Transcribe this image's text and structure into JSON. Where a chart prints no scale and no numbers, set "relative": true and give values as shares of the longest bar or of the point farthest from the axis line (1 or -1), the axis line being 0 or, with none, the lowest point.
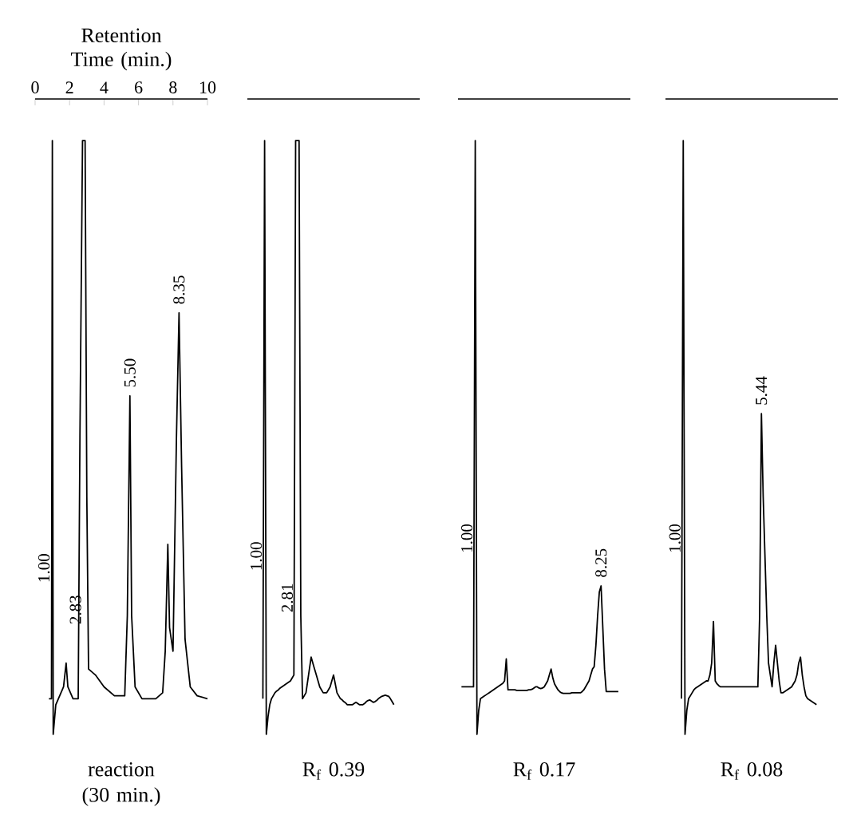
{
  "chart_data": [
    {
      "type": "line",
      "relative": true,
      "xlabel": "Retention Time (min.)",
      "xlim": [
        0,
        10
      ],
      "xticks": [
        0,
        2,
        4,
        6,
        8,
        10
      ],
      "tick_labels": "x",
      "series": [
        {
          "color": "#000000",
          "x": [
            0.8,
            0.95,
            1.0,
            1.05,
            1.2,
            1.5,
            1.65,
            1.8,
            1.9,
            2.2,
            2.4,
            2.5,
            2.6,
            2.75,
            2.9,
            3.0,
            3.1,
            3.5,
            4.0,
            4.6,
            5.2,
            5.35,
            5.5,
            5.6,
            5.8,
            6.2,
            7.0,
            7.4,
            7.55,
            7.7,
            7.8,
            8.0,
            8.2,
            8.35,
            8.5,
            8.7,
            9.0,
            9.4,
            10.0
          ],
          "values": [
            0.06,
            0.06,
            1.0,
            0.0,
            0.05,
            0.07,
            0.08,
            0.12,
            0.08,
            0.06,
            0.06,
            0.06,
            0.5,
            1.0,
            1.0,
            0.4,
            0.11,
            0.1,
            0.08,
            0.065,
            0.065,
            0.2,
            0.57,
            0.2,
            0.08,
            0.06,
            0.06,
            0.07,
            0.14,
            0.32,
            0.18,
            0.14,
            0.5,
            0.71,
            0.45,
            0.16,
            0.08,
            0.065,
            0.06
          ]
        }
      ],
      "annotations": [
        {
          "text": "1.00",
          "x": 1.0,
          "y": 0.28
        },
        {
          "text": "2.83",
          "x": 2.83,
          "y": 0.21
        },
        {
          "text": "5.50",
          "x": 5.5,
          "y": 0.57
        },
        {
          "text": "8.35",
          "x": 8.35,
          "y": 0.71
        },
        "reaction (30 min.)"
      ]
    },
    {
      "type": "line",
      "relative": true,
      "tick_labels": false,
      "categories": [
        null,
        null,
        null,
        null,
        null,
        null,
        null,
        null,
        null,
        null,
        null,
        null,
        null,
        null,
        null,
        null,
        null,
        null,
        null,
        null,
        null,
        null,
        null,
        null,
        null,
        null,
        null,
        null,
        null,
        null,
        null,
        null,
        null,
        null,
        null,
        null,
        null,
        null,
        null,
        null,
        null,
        null,
        null,
        null,
        null,
        null,
        null,
        null,
        null,
        null,
        null,
        null,
        null,
        null,
        null,
        null,
        null,
        null,
        null,
        null,
        null,
        null,
        null,
        null,
        null,
        null,
        null,
        null,
        null,
        null,
        null,
        null,
        null,
        null,
        null,
        null,
        null
      ],
      "series": [
        {
          "color": "#000000",
          "values": [
            0.06,
            1.0,
            0.0,
            0.03,
            0.05,
            0.06,
            0.065,
            0.07,
            0.073,
            0.075,
            0.078,
            0.08,
            0.082,
            0.084,
            0.086,
            0.088,
            0.09,
            0.095,
            0.1,
            1.0,
            1.0,
            1.0,
            0.2,
            0.06,
            0.065,
            0.07,
            0.09,
            0.11,
            0.13,
            0.12,
            0.11,
            0.1,
            0.09,
            0.08,
            0.075,
            0.07,
            0.07,
            0.07,
            0.075,
            0.08,
            0.09,
            0.1,
            0.085,
            0.07,
            0.065,
            0.06,
            0.058,
            0.055,
            0.053,
            0.05,
            0.05,
            0.05,
            0.05,
            0.052,
            0.054,
            0.052,
            0.05,
            0.05,
            0.05,
            0.052,
            0.055,
            0.057,
            0.058,
            0.056,
            0.054,
            0.055,
            0.057,
            0.06,
            0.062,
            0.064,
            0.065,
            0.066,
            0.065,
            0.064,
            0.06,
            0.055,
            0.05
          ]
        }
      ],
      "annotations": [
        {
          "text": "1.00",
          "y": 0.3
        },
        {
          "text": "2.81",
          "y": 0.23
        },
        "R$_{f}$ 0.39"
      ]
    },
    {
      "type": "line",
      "relative": true,
      "tick_labels": false,
      "categories": [
        null,
        null,
        null,
        null,
        null,
        null,
        null,
        null,
        null,
        null,
        null,
        null,
        null,
        null,
        null,
        null,
        null,
        null,
        null,
        null,
        null,
        null,
        null,
        null,
        null,
        null,
        null,
        null,
        null,
        null,
        null,
        null,
        null,
        null,
        null,
        null,
        null,
        null,
        null,
        null,
        null,
        null,
        null,
        null,
        null,
        null,
        null,
        null,
        null,
        null,
        null,
        null,
        null,
        null,
        null,
        null,
        null,
        null,
        null,
        null,
        null,
        null,
        null,
        null,
        null,
        null,
        null,
        null,
        null,
        null,
        null,
        null,
        null,
        null,
        null,
        null,
        null,
        null,
        null,
        null,
        null,
        null,
        null,
        null,
        null,
        null,
        null,
        null,
        null,
        null,
        null,
        null
      ],
      "series": [
        {
          "color": "#000000",
          "values": [
            0.08,
            0.08,
            0.08,
            0.08,
            0.08,
            0.08,
            0.08,
            0.08,
            1.0,
            0.0,
            0.04,
            0.06,
            0.062,
            0.064,
            0.066,
            0.068,
            0.07,
            0.072,
            0.074,
            0.076,
            0.078,
            0.08,
            0.082,
            0.084,
            0.086,
            0.09,
            0.127,
            0.075,
            0.075,
            0.075,
            0.075,
            0.075,
            0.074,
            0.074,
            0.074,
            0.074,
            0.074,
            0.074,
            0.074,
            0.075,
            0.075,
            0.076,
            0.078,
            0.08,
            0.08,
            0.078,
            0.077,
            0.078,
            0.08,
            0.085,
            0.09,
            0.1,
            0.11,
            0.095,
            0.085,
            0.08,
            0.075,
            0.072,
            0.07,
            0.069,
            0.069,
            0.069,
            0.069,
            0.069,
            0.07,
            0.07,
            0.07,
            0.07,
            0.07,
            0.07,
            0.072,
            0.075,
            0.08,
            0.085,
            0.09,
            0.1,
            0.11,
            0.114,
            0.15,
            0.2,
            0.24,
            0.25,
            0.18,
            0.11,
            0.072,
            0.072,
            0.072,
            0.072,
            0.072,
            0.072,
            0.072,
            0.072
          ]
        }
      ],
      "annotations": [
        {
          "text": "1.00",
          "y": 0.33
        },
        {
          "text": "8.25",
          "y": 0.25
        },
        "R$_{f}$ 0.17"
      ]
    },
    {
      "type": "line",
      "relative": true,
      "tick_labels": false,
      "categories": [
        null,
        null,
        null,
        null,
        null,
        null,
        null,
        null,
        null,
        null,
        null,
        null,
        null,
        null,
        null,
        null,
        null,
        null,
        null,
        null,
        null,
        null,
        null,
        null,
        null,
        null,
        null,
        null,
        null,
        null,
        null,
        null,
        null,
        null,
        null,
        null,
        null,
        null,
        null,
        null,
        null,
        null,
        null,
        null,
        null,
        null,
        null,
        null,
        null,
        null,
        null,
        null,
        null,
        null,
        null,
        null,
        null,
        null,
        null,
        null,
        null,
        null,
        null,
        null,
        null,
        null,
        null,
        null,
        null,
        null,
        null,
        null,
        null,
        null,
        null,
        null,
        null
      ],
      "series": [
        {
          "color": "#000000",
          "values": [
            0.06,
            1.0,
            0.0,
            0.04,
            0.06,
            0.065,
            0.07,
            0.075,
            0.078,
            0.08,
            0.082,
            0.084,
            0.086,
            0.088,
            0.09,
            0.09,
            0.1,
            0.12,
            0.19,
            0.09,
            0.085,
            0.082,
            0.08,
            0.08,
            0.08,
            0.08,
            0.08,
            0.08,
            0.08,
            0.08,
            0.08,
            0.08,
            0.08,
            0.08,
            0.08,
            0.08,
            0.08,
            0.08,
            0.08,
            0.08,
            0.08,
            0.08,
            0.08,
            0.08,
            0.2,
            0.54,
            0.4,
            0.3,
            0.2,
            0.12,
            0.1,
            0.08,
            0.12,
            0.15,
            0.12,
            0.09,
            0.07,
            0.07,
            0.072,
            0.074,
            0.076,
            0.078,
            0.08,
            0.085,
            0.09,
            0.1,
            0.12,
            0.13,
            0.1,
            0.08,
            0.065,
            0.06,
            0.058,
            0.056,
            0.054,
            0.052,
            0.05
          ]
        }
      ],
      "annotations": [
        {
          "text": "1.00",
          "y": 0.33
        },
        {
          "text": "5.44",
          "y": 0.54
        },
        "R$_{f}$ 0.08"
      ]
    }
  ]
}
